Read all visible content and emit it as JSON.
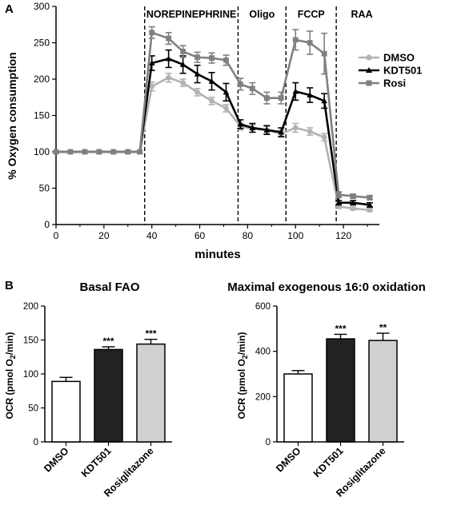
{
  "panel_a": {
    "label": "A",
    "chart_data": {
      "type": "line",
      "xlabel": "minutes",
      "ylabel": "% Oxygen consumption",
      "xlim": [
        0,
        135
      ],
      "ylim": [
        0,
        300
      ],
      "x_ticks": [
        0,
        20,
        40,
        60,
        80,
        100,
        120
      ],
      "y_ticks": [
        0,
        50,
        100,
        150,
        200,
        250,
        300
      ],
      "grid": false,
      "legend_position": "right",
      "phases": [
        {
          "label": "NOREPINEPHRINE",
          "x": 37
        },
        {
          "label": "Oligo",
          "x": 76
        },
        {
          "label": "FCCP",
          "x": 96
        },
        {
          "label": "RAA",
          "x": 117
        }
      ],
      "x": [
        0,
        6,
        12,
        18,
        24,
        30,
        35,
        40,
        47,
        53,
        59,
        65,
        71,
        77,
        82,
        88,
        94,
        100,
        106,
        112,
        118,
        124,
        131
      ],
      "series": [
        {
          "name": "DMSO",
          "color": "#b2b2b2",
          "marker": "circle",
          "values": [
            100,
            100,
            100,
            100,
            100,
            100,
            100,
            190,
            202,
            195,
            182,
            170,
            160,
            135,
            132,
            130,
            125,
            133,
            128,
            120,
            25,
            22,
            20
          ],
          "errors": [
            0,
            0,
            0,
            0,
            0,
            0,
            0,
            6,
            6,
            5,
            5,
            5,
            5,
            5,
            5,
            5,
            5,
            6,
            5,
            5,
            3,
            2,
            2
          ]
        },
        {
          "name": "KDT501",
          "color": "#000000",
          "marker": "triangle",
          "values": [
            100,
            100,
            100,
            100,
            100,
            100,
            100,
            222,
            228,
            220,
            207,
            197,
            182,
            138,
            133,
            130,
            127,
            183,
            178,
            170,
            30,
            30,
            27
          ],
          "errors": [
            0,
            0,
            0,
            0,
            0,
            0,
            0,
            10,
            12,
            12,
            12,
            12,
            12,
            6,
            6,
            6,
            6,
            12,
            10,
            10,
            3,
            3,
            3
          ]
        },
        {
          "name": "Rosi",
          "color": "#808080",
          "marker": "square",
          "values": [
            100,
            100,
            100,
            100,
            100,
            100,
            100,
            264,
            256,
            238,
            230,
            229,
            226,
            193,
            187,
            174,
            174,
            254,
            250,
            235,
            41,
            39,
            37
          ],
          "errors": [
            0,
            0,
            0,
            0,
            0,
            0,
            0,
            8,
            8,
            8,
            7,
            7,
            7,
            8,
            8,
            8,
            8,
            14,
            16,
            28,
            4,
            3,
            3
          ]
        }
      ]
    }
  },
  "panel_b": {
    "label": "B",
    "charts": [
      {
        "type": "bar",
        "title": "Basal  FAO",
        "ylabel_main": "OCR (pmol O",
        "ylabel_sub": "2",
        "ylabel_end": "/min)",
        "categories": [
          "DMSO",
          "KDT501",
          "Rosiglitazone"
        ],
        "values": [
          89,
          136,
          144
        ],
        "errors": [
          6,
          4,
          7
        ],
        "bar_colors": [
          "#ffffff",
          "#222222",
          "#d0d0d0"
        ],
        "significance": [
          "",
          "***",
          "***"
        ],
        "ylim": [
          0,
          200
        ],
        "y_ticks": [
          0,
          50,
          100,
          150,
          200
        ]
      },
      {
        "type": "bar",
        "title": "Maximal exogenous 16:0 oxidation",
        "ylabel_main": "OCR (pmol O",
        "ylabel_sub": "2",
        "ylabel_end": "/min)",
        "categories": [
          "DMSO",
          "KDT501",
          "Rosiglitazone"
        ],
        "values": [
          300,
          455,
          448
        ],
        "errors": [
          15,
          20,
          32
        ],
        "bar_colors": [
          "#ffffff",
          "#222222",
          "#d0d0d0"
        ],
        "significance": [
          "",
          "***",
          "**"
        ],
        "ylim": [
          0,
          600
        ],
        "y_ticks": [
          0,
          200,
          400,
          600
        ]
      }
    ]
  }
}
